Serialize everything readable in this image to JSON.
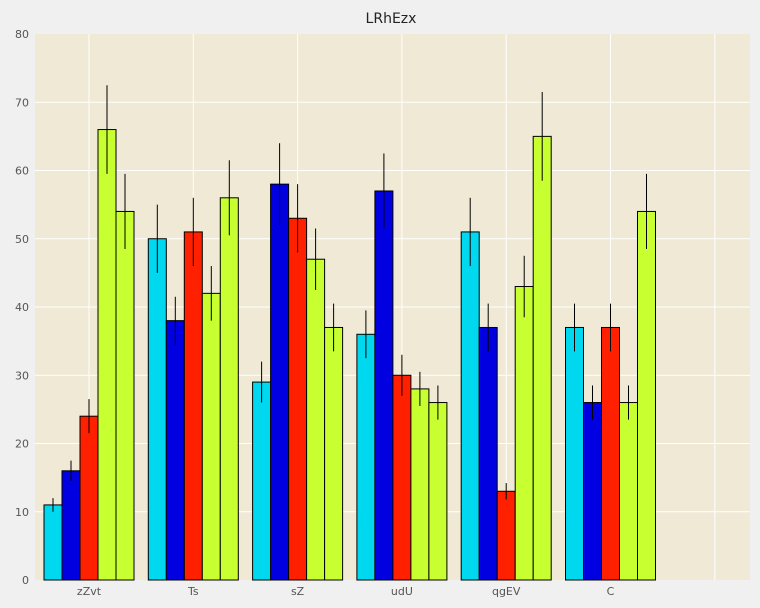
{
  "chart_data": {
    "type": "bar",
    "title": "LRhEzx",
    "categories": [
      "zZvt",
      "Ts",
      "sZ",
      "udU",
      "qgEV",
      "C"
    ],
    "series": [
      {
        "color": "#00d8f0",
        "values": [
          11,
          50,
          29,
          36,
          51,
          37
        ],
        "errors": [
          1,
          5,
          3,
          3.5,
          5,
          3.5
        ]
      },
      {
        "color": "#0000e0",
        "values": [
          16,
          38,
          58,
          57,
          37,
          26
        ],
        "errors": [
          1.5,
          3.5,
          6,
          5.5,
          3.5,
          2.5
        ]
      },
      {
        "color": "#ff2000",
        "values": [
          24,
          51,
          53,
          30,
          13,
          37
        ],
        "errors": [
          2.5,
          5,
          5,
          3,
          1.2,
          3.5
        ]
      },
      {
        "color": "#c8ff30",
        "values": [
          66,
          42,
          47,
          28,
          43,
          26
        ],
        "errors": [
          6.5,
          4,
          4.5,
          2.5,
          4.5,
          2.5
        ]
      },
      {
        "color": "#c8ff30",
        "values": [
          54,
          56,
          37,
          26,
          65,
          54
        ],
        "errors": [
          5.5,
          5.5,
          3.5,
          2.5,
          6.5,
          5.5
        ]
      }
    ],
    "xlabel": "",
    "ylabel": "",
    "ylim": [
      0,
      80
    ],
    "yticks": [
      "0",
      "10",
      "20",
      "30",
      "40",
      "50",
      "60",
      "70",
      "80"
    ],
    "grid": true,
    "background": "#efe9d6"
  }
}
